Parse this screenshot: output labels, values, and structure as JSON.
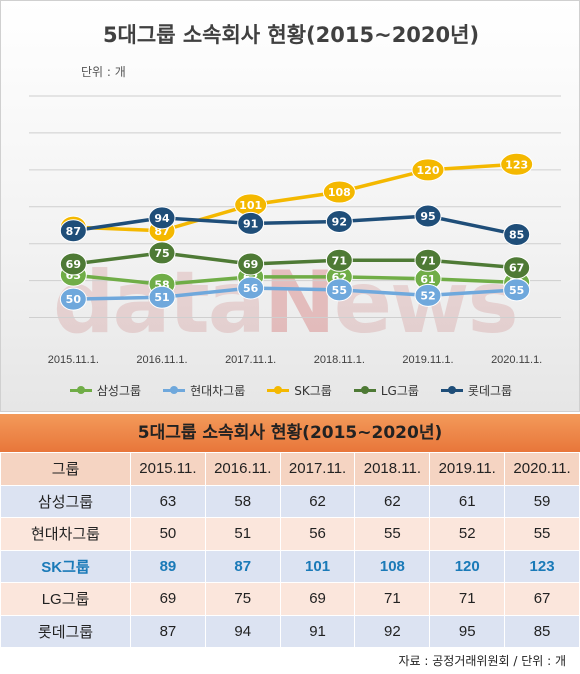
{
  "chart": {
    "title": "5대그룹 소속회사 현황(2015~2020년)",
    "unit": "단위 : 개"
  },
  "watermark": {
    "text": "dataNews"
  },
  "chart_data": {
    "type": "line",
    "title": "5대그룹 소속회사 현황(2015~2020년)",
    "x": [
      "2015.11.1.",
      "2016.11.1.",
      "2017.11.1.",
      "2018.11.1.",
      "2019.11.1.",
      "2020.11.1."
    ],
    "ylim": [
      30,
      160
    ],
    "grid": true,
    "legend": "bottom",
    "series": [
      {
        "name": "삼성그룹",
        "color": "#70ad47",
        "values": [
          63,
          58,
          62,
          62,
          61,
          59
        ]
      },
      {
        "name": "현대차그룹",
        "color": "#6fa8dc",
        "values": [
          50,
          51,
          56,
          55,
          52,
          55
        ]
      },
      {
        "name": "SK그룹",
        "color": "#f4b800",
        "values": [
          89,
          87,
          101,
          108,
          120,
          123
        ]
      },
      {
        "name": "LG그룹",
        "color": "#4e7a35",
        "values": [
          69,
          75,
          69,
          71,
          71,
          67
        ]
      },
      {
        "name": "롯데그룹",
        "color": "#1f4e79",
        "values": [
          87,
          94,
          91,
          92,
          95,
          85
        ]
      }
    ]
  },
  "legend": {
    "items": [
      {
        "label": "삼성그룹",
        "color": "#70ad47"
      },
      {
        "label": "현대차그룹",
        "color": "#6fa8dc"
      },
      {
        "label": "SK그룹",
        "color": "#f4b800"
      },
      {
        "label": "LG그룹",
        "color": "#4e7a35"
      },
      {
        "label": "롯데그룹",
        "color": "#1f4e79"
      }
    ]
  },
  "table": {
    "title": "5대그룹 소속회사 현황(2015~2020년)",
    "headers": [
      "그룹",
      "2015.11.",
      "2016.11.",
      "2017.11.",
      "2018.11.",
      "2019.11.",
      "2020.11."
    ],
    "rows": [
      {
        "name": "삼성그룹",
        "values": [
          "63",
          "58",
          "62",
          "62",
          "61",
          "59"
        ]
      },
      {
        "name": "현대차그룹",
        "values": [
          "50",
          "51",
          "56",
          "55",
          "52",
          "55"
        ]
      },
      {
        "name": "SK그룹",
        "values": [
          "89",
          "87",
          "101",
          "108",
          "120",
          "123"
        ]
      },
      {
        "name": "LG그룹",
        "values": [
          "69",
          "75",
          "69",
          "71",
          "71",
          "67"
        ]
      },
      {
        "name": "롯데그룹",
        "values": [
          "87",
          "94",
          "91",
          "92",
          "95",
          "85"
        ]
      }
    ]
  },
  "source": "자료 : 공정거래위원회 / 단위 : 개"
}
